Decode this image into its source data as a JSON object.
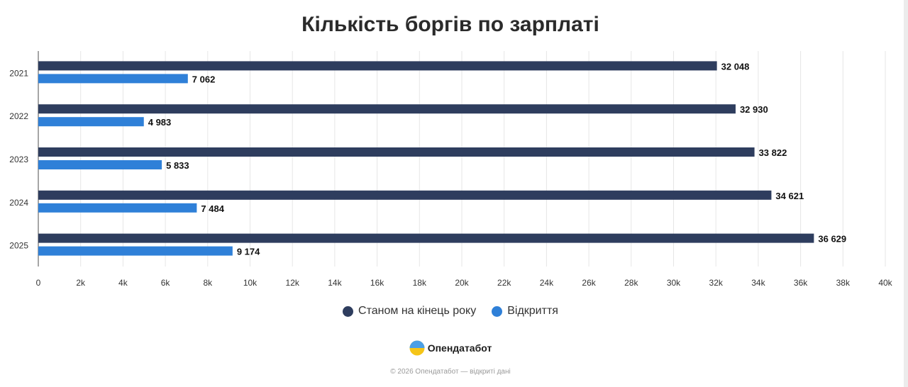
{
  "title": "Кількість боргів по зарплаті",
  "chart_data": {
    "type": "bar",
    "orientation": "horizontal",
    "title": "Кількість боргів по зарплаті",
    "categories": [
      "2021",
      "2022",
      "2023",
      "2024",
      "2025"
    ],
    "series": [
      {
        "name": "Станом на кінець року",
        "values": [
          32048,
          32930,
          33822,
          34621,
          36629
        ],
        "labels": [
          "32 048",
          "32 930",
          "33 822",
          "34 621",
          "36 629"
        ],
        "color": "#2e3d5e"
      },
      {
        "name": "Відкриття",
        "values": [
          7062,
          4983,
          5833,
          7484,
          9174
        ],
        "labels": [
          "7 062",
          "4 983",
          "5 833",
          "7 484",
          "9 174"
        ],
        "color": "#2f80d8"
      }
    ],
    "xlim": [
      0,
      40000
    ],
    "xticks": [
      "0",
      "2k",
      "4k",
      "6k",
      "8k",
      "10k",
      "12k",
      "14k",
      "16k",
      "18k",
      "20k",
      "22k",
      "24k",
      "26k",
      "28k",
      "30k",
      "32k",
      "34k",
      "36k",
      "38k",
      "40k"
    ],
    "grid": true,
    "legend": "bottom-center"
  },
  "legend": {
    "items": [
      {
        "label": "Станом на кінець року",
        "color": "#2e3d5e"
      },
      {
        "label": "Відкриття",
        "color": "#2f80d8"
      }
    ]
  },
  "brand": {
    "name": "Опендатабот"
  },
  "footer": {
    "text": "© 2026 Опендатабот — відкриті дані"
  }
}
